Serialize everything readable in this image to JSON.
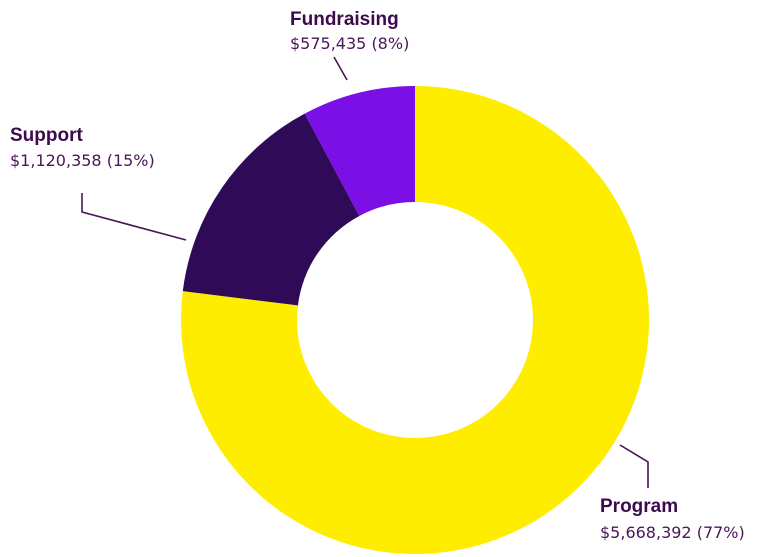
{
  "chart_data": {
    "type": "pie",
    "variant": "donut",
    "legend": "leader-line labels",
    "series": [
      {
        "label": "Program",
        "amount": "$5,668,392",
        "percent_text": "(77%)",
        "value": 5668392,
        "color": "#ffed00"
      },
      {
        "label": "Support",
        "amount": "$1,120,358",
        "percent_text": "(15%)",
        "value": 1120358,
        "color": "#2e0a57"
      },
      {
        "label": "Fundraising",
        "amount": "$575,435",
        "percent_text": "(8%)",
        "value": 575435,
        "color": "#7a0fe6"
      }
    ]
  }
}
